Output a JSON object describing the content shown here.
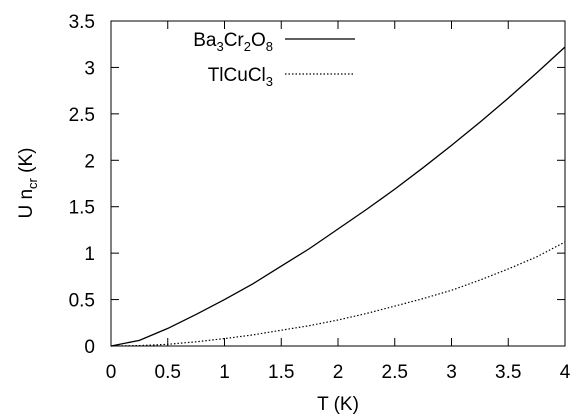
{
  "chart_data": {
    "type": "line",
    "title": "",
    "xlabel": "T (K)",
    "ylabel": {
      "main": "U n",
      "sub": "cr",
      "unit": " (K)"
    },
    "xlim": [
      0,
      4
    ],
    "ylim": [
      0,
      3.5
    ],
    "grid": false,
    "legend_position": "top-right",
    "x_ticks": [
      "0",
      "0.5",
      "1",
      "1.5",
      "2",
      "2.5",
      "3",
      "3.5",
      "4"
    ],
    "y_ticks": [
      "0",
      "0.5",
      "1",
      "1.5",
      "2",
      "2.5",
      "3",
      "3.5"
    ],
    "series": [
      {
        "name": [
          {
            "t": "Ba"
          },
          {
            "t": "3",
            "sub": true
          },
          {
            "t": "Cr"
          },
          {
            "t": "2",
            "sub": true
          },
          {
            "t": "O"
          },
          {
            "t": "8",
            "sub": true
          }
        ],
        "style": "solid",
        "color": "#000000",
        "points": [
          [
            0,
            0
          ],
          [
            0.25,
            0.06
          ],
          [
            0.5,
            0.19
          ],
          [
            0.75,
            0.34
          ],
          [
            1,
            0.5
          ],
          [
            1.25,
            0.67
          ],
          [
            1.5,
            0.86
          ],
          [
            1.75,
            1.05
          ],
          [
            2,
            1.26
          ],
          [
            2.25,
            1.47
          ],
          [
            2.5,
            1.69
          ],
          [
            2.75,
            1.92
          ],
          [
            3,
            2.16
          ],
          [
            3.25,
            2.41
          ],
          [
            3.5,
            2.67
          ],
          [
            3.75,
            2.94
          ],
          [
            4,
            3.22
          ]
        ]
      },
      {
        "name": [
          {
            "t": "TlCuCl"
          },
          {
            "t": "3",
            "sub": true
          }
        ],
        "style": "dotted",
        "color": "#000000",
        "points": [
          [
            0,
            0
          ],
          [
            0.25,
            0.004
          ],
          [
            0.5,
            0.018
          ],
          [
            0.75,
            0.045
          ],
          [
            1,
            0.08
          ],
          [
            1.25,
            0.12
          ],
          [
            1.5,
            0.17
          ],
          [
            1.75,
            0.22
          ],
          [
            2,
            0.28
          ],
          [
            2.25,
            0.35
          ],
          [
            2.5,
            0.43
          ],
          [
            2.75,
            0.51
          ],
          [
            3,
            0.6
          ],
          [
            3.25,
            0.71
          ],
          [
            3.5,
            0.83
          ],
          [
            3.75,
            0.96
          ],
          [
            4,
            1.12
          ]
        ]
      }
    ]
  }
}
